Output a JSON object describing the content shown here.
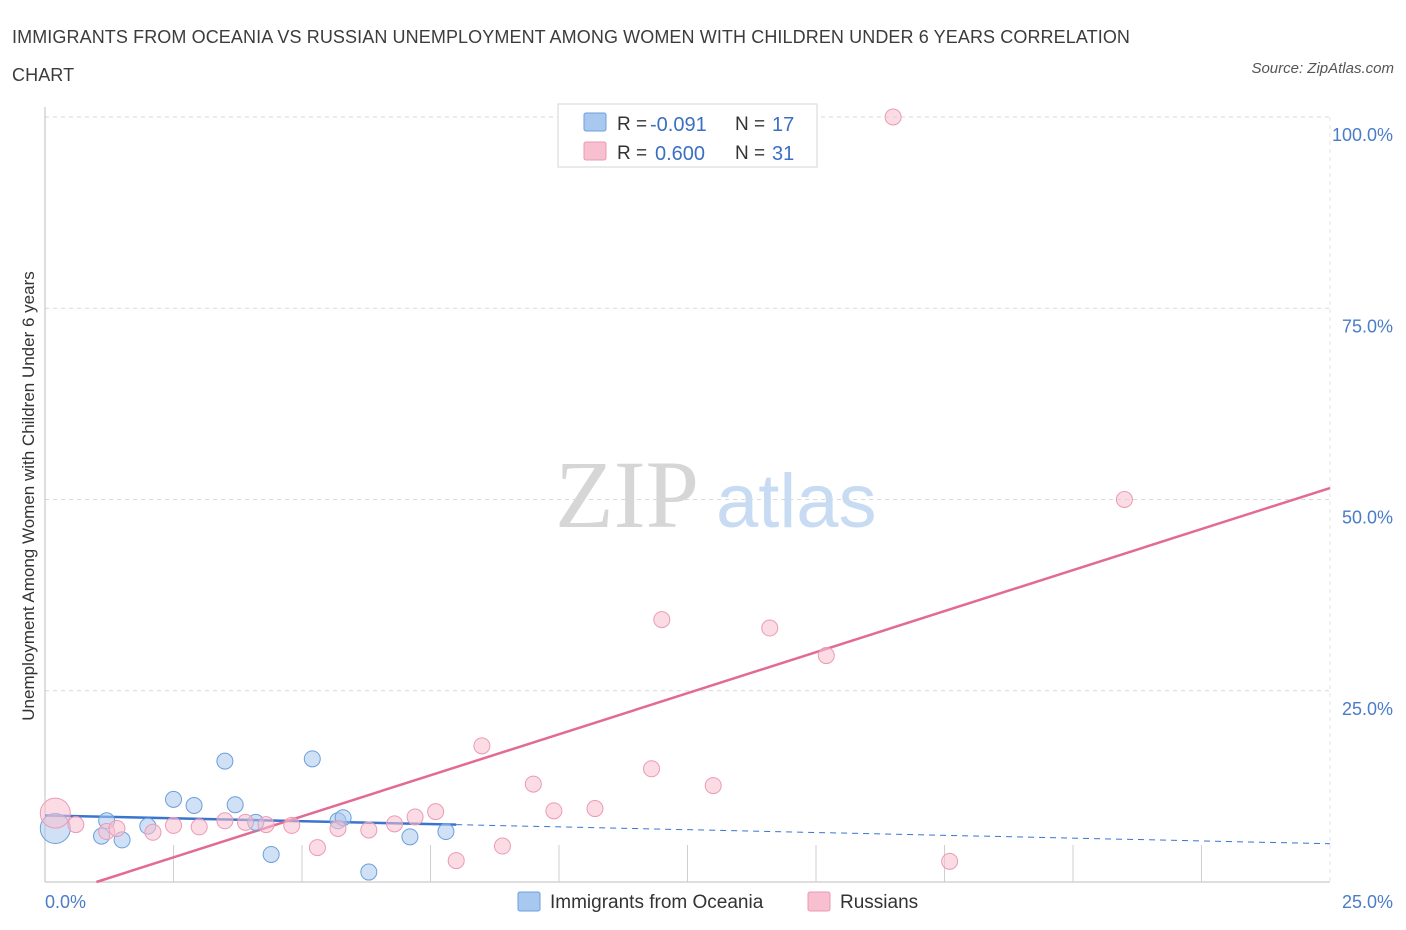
{
  "title": "IMMIGRANTS FROM OCEANIA VS RUSSIAN UNEMPLOYMENT AMONG WOMEN WITH CHILDREN UNDER 6 YEARS CORRELATION CHART",
  "source": "Source: ZipAtlas.com",
  "watermark": {
    "zip": "ZIP",
    "atlas": "atlas"
  },
  "colors": {
    "oceania": "#a9c8ef",
    "oceania_stroke": "#6b9fdc",
    "oceania_line": "#3a74d0",
    "russians": "#f7bfd0",
    "russians_stroke": "#ec9ab4",
    "russians_line": "#e26a94",
    "tick": "#4a7cc7",
    "grid": "#d9d9d9"
  },
  "legend": {
    "rows": [
      {
        "r_label": "R =",
        "r_value": "-0.091",
        "n_label": "N =",
        "n_value": "17"
      },
      {
        "r_label": "R =",
        "r_value": "0.600",
        "n_label": "N =",
        "n_value": "31"
      }
    ]
  },
  "chart_data": {
    "type": "scatter",
    "title": "IMMIGRANTS FROM OCEANIA VS RUSSIAN UNEMPLOYMENT AMONG WOMEN WITH CHILDREN UNDER 6 YEARS CORRELATION CHART",
    "xlabel": "",
    "ylabel": "Unemployment Among Women with Children Under 6 years",
    "xlim": [
      0,
      25
    ],
    "ylim": [
      0,
      100
    ],
    "x_tick_labels": [
      "0.0%",
      "25.0%"
    ],
    "y_ticks": [
      25,
      50,
      75,
      100
    ],
    "y_tick_labels": [
      "25.0%",
      "50.0%",
      "75.0%",
      "100.0%"
    ],
    "series": [
      {
        "name": "Immigrants from Oceania",
        "key": "oceania",
        "r": -0.091,
        "n": 17,
        "trend": {
          "x0": 0,
          "y0": 8.7,
          "x1": 8.0,
          "y1": 7.5,
          "dashed_to_x": 25,
          "dashed_y": 5.0
        },
        "points": [
          {
            "x": 0.2,
            "y": 7.0,
            "big": true
          },
          {
            "x": 1.2,
            "y": 8.0
          },
          {
            "x": 1.1,
            "y": 6.0
          },
          {
            "x": 1.5,
            "y": 5.5
          },
          {
            "x": 2.0,
            "y": 7.3
          },
          {
            "x": 2.5,
            "y": 10.8
          },
          {
            "x": 2.9,
            "y": 10.0
          },
          {
            "x": 3.5,
            "y": 15.8
          },
          {
            "x": 3.7,
            "y": 10.1
          },
          {
            "x": 4.1,
            "y": 7.8
          },
          {
            "x": 4.4,
            "y": 3.6
          },
          {
            "x": 5.2,
            "y": 16.1
          },
          {
            "x": 5.7,
            "y": 8.0
          },
          {
            "x": 5.8,
            "y": 8.4
          },
          {
            "x": 6.3,
            "y": 1.3
          },
          {
            "x": 7.1,
            "y": 5.9
          },
          {
            "x": 7.8,
            "y": 6.6
          }
        ]
      },
      {
        "name": "Russians",
        "key": "russians",
        "r": 0.6,
        "n": 31,
        "trend": {
          "x0": 1.0,
          "y0": 0.0,
          "x1": 25.0,
          "y1": 51.5
        },
        "points": [
          {
            "x": 0.2,
            "y": 9.0,
            "big": true
          },
          {
            "x": 0.6,
            "y": 7.5
          },
          {
            "x": 1.2,
            "y": 6.6
          },
          {
            "x": 1.4,
            "y": 7.0
          },
          {
            "x": 2.1,
            "y": 6.5
          },
          {
            "x": 2.5,
            "y": 7.4
          },
          {
            "x": 3.0,
            "y": 7.2
          },
          {
            "x": 3.5,
            "y": 8.0
          },
          {
            "x": 3.9,
            "y": 7.8
          },
          {
            "x": 4.3,
            "y": 7.5
          },
          {
            "x": 4.8,
            "y": 7.4
          },
          {
            "x": 5.3,
            "y": 4.5
          },
          {
            "x": 5.7,
            "y": 7.0
          },
          {
            "x": 6.3,
            "y": 6.8
          },
          {
            "x": 6.8,
            "y": 7.6
          },
          {
            "x": 7.2,
            "y": 8.5
          },
          {
            "x": 7.6,
            "y": 9.2
          },
          {
            "x": 8.0,
            "y": 2.8
          },
          {
            "x": 8.5,
            "y": 17.8
          },
          {
            "x": 8.9,
            "y": 4.7
          },
          {
            "x": 9.5,
            "y": 12.8
          },
          {
            "x": 9.9,
            "y": 9.3
          },
          {
            "x": 10.7,
            "y": 9.6
          },
          {
            "x": 11.8,
            "y": 14.8
          },
          {
            "x": 12.0,
            "y": 34.3
          },
          {
            "x": 13.0,
            "y": 12.6
          },
          {
            "x": 14.1,
            "y": 33.2
          },
          {
            "x": 15.2,
            "y": 29.6
          },
          {
            "x": 16.5,
            "y": 100.0
          },
          {
            "x": 17.6,
            "y": 2.7
          },
          {
            "x": 21.0,
            "y": 50.0
          }
        ]
      }
    ]
  }
}
